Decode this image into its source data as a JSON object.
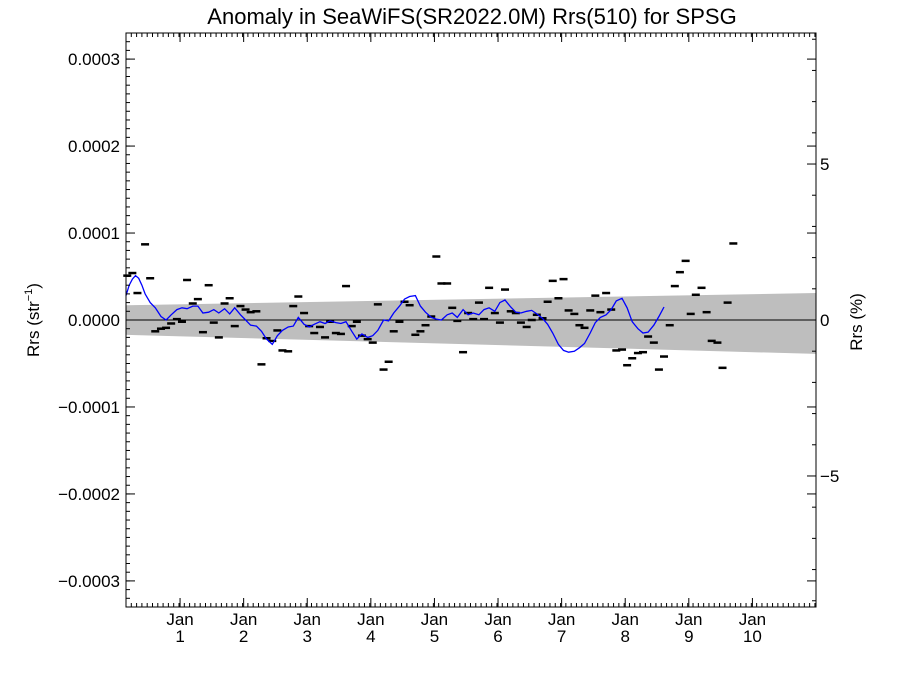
{
  "chart_data": {
    "type": "line",
    "title": "Anomaly in SeaWiFS(SR2022.0M) Rrs(510) for SPSG",
    "ylabel_main": "Rrs (str",
    "ylabel_sup": "−1",
    "ylabel_close": ")",
    "y2label": "Rrs (%)",
    "ylim": [
      -0.00033,
      0.00033
    ],
    "y2lim": [
      -9.2,
      9.2
    ],
    "xlim": [
      0,
      10.85
    ],
    "y_ticks": [
      {
        "value": 0.0003,
        "label": "0.0003"
      },
      {
        "value": 0.0002,
        "label": "0.0002"
      },
      {
        "value": 0.0001,
        "label": "0.0001"
      },
      {
        "value": 0.0,
        "label": "0.0000"
      },
      {
        "value": -0.0001,
        "label": "−0.0001"
      },
      {
        "value": -0.0002,
        "label": "−0.0002"
      },
      {
        "value": -0.0003,
        "label": "−0.0003"
      }
    ],
    "y2_ticks": [
      {
        "value": 5,
        "label": "5"
      },
      {
        "value": 0,
        "label": "0"
      },
      {
        "value": -5,
        "label": "−5"
      }
    ],
    "x_ticks": [
      {
        "value": 0.85,
        "month": "Jan",
        "year": "1"
      },
      {
        "value": 1.85,
        "month": "Jan",
        "year": "2"
      },
      {
        "value": 2.85,
        "month": "Jan",
        "year": "3"
      },
      {
        "value": 3.85,
        "month": "Jan",
        "year": "4"
      },
      {
        "value": 4.85,
        "month": "Jan",
        "year": "5"
      },
      {
        "value": 5.85,
        "month": "Jan",
        "year": "6"
      },
      {
        "value": 6.85,
        "month": "Jan",
        "year": "7"
      },
      {
        "value": 7.85,
        "month": "Jan",
        "year": "8"
      },
      {
        "value": 8.85,
        "month": "Jan",
        "year": "9"
      },
      {
        "value": 9.85,
        "month": "Jan",
        "year": "10"
      }
    ],
    "band": {
      "color": "#bebebe",
      "upper": [
        [
          0,
          1.7e-05
        ],
        [
          10.85,
          3.1e-05
        ]
      ],
      "lower": [
        [
          0,
          -1.7e-05
        ],
        [
          10.85,
          -3.9e-05
        ]
      ]
    },
    "zero_line": 0,
    "series": [
      {
        "kind": "monthly_points",
        "color": "#000000",
        "points": [
          [
            0.02,
            5.1e-05
          ],
          [
            0.1,
            5.4e-05
          ],
          [
            0.18,
            3.1e-05
          ],
          [
            0.3,
            8.7e-05
          ],
          [
            0.38,
            4.8e-05
          ],
          [
            0.46,
            -1.3e-05
          ],
          [
            0.55,
            -1e-05
          ],
          [
            0.63,
            -9e-06
          ],
          [
            0.71,
            -4e-06
          ],
          [
            0.8,
            1e-06
          ],
          [
            0.88,
            -2e-06
          ],
          [
            0.96,
            4.6e-05
          ],
          [
            1.05,
            1.9e-05
          ],
          [
            1.13,
            2.4e-05
          ],
          [
            1.21,
            -1.4e-05
          ],
          [
            1.3,
            4e-05
          ],
          [
            1.38,
            -3e-06
          ],
          [
            1.46,
            -2e-05
          ],
          [
            1.55,
            1.9e-05
          ],
          [
            1.63,
            2.5e-05
          ],
          [
            1.71,
            -7e-06
          ],
          [
            1.8,
            1.6e-05
          ],
          [
            1.88,
            1.2e-05
          ],
          [
            1.96,
            9e-06
          ],
          [
            2.05,
            1e-05
          ],
          [
            2.13,
            -5.1e-05
          ],
          [
            2.21,
            -2.1e-05
          ],
          [
            2.3,
            -2.4e-05
          ],
          [
            2.38,
            -1.2e-05
          ],
          [
            2.46,
            -3.5e-05
          ],
          [
            2.55,
            -3.6e-05
          ],
          [
            2.63,
            1.6e-05
          ],
          [
            2.71,
            2.7e-05
          ],
          [
            2.8,
            8e-06
          ],
          [
            2.88,
            -7e-06
          ],
          [
            2.96,
            -1.5e-05
          ],
          [
            3.05,
            -8e-06
          ],
          [
            3.13,
            -2e-05
          ],
          [
            3.21,
            -2e-06
          ],
          [
            3.3,
            -1.5e-05
          ],
          [
            3.38,
            -1.6e-05
          ],
          [
            3.46,
            3.9e-05
          ],
          [
            3.55,
            -7e-06
          ],
          [
            3.63,
            -2e-06
          ],
          [
            3.71,
            -1.8e-05
          ],
          [
            3.8,
            -2.2e-05
          ],
          [
            3.88,
            -2.6e-05
          ],
          [
            3.96,
            1.8e-05
          ],
          [
            4.05,
            -5.7e-05
          ],
          [
            4.13,
            -4.8e-05
          ],
          [
            4.21,
            -1.3e-05
          ],
          [
            4.3,
            -2e-06
          ],
          [
            4.38,
            2.1e-05
          ],
          [
            4.46,
            1.7e-05
          ],
          [
            4.55,
            -1.7e-05
          ],
          [
            4.63,
            -1.3e-05
          ],
          [
            4.71,
            -6e-06
          ],
          [
            4.8,
            4e-06
          ],
          [
            4.88,
            7.3e-05
          ],
          [
            4.96,
            4.2e-05
          ],
          [
            5.05,
            4.2e-05
          ],
          [
            5.13,
            1.4e-05
          ],
          [
            5.21,
            -1e-06
          ],
          [
            5.3,
            -3.7e-05
          ],
          [
            5.38,
            8e-06
          ],
          [
            5.46,
            1e-06
          ],
          [
            5.55,
            2e-05
          ],
          [
            5.63,
            1e-06
          ],
          [
            5.71,
            3.7e-05
          ],
          [
            5.8,
            8e-06
          ],
          [
            5.88,
            -3e-06
          ],
          [
            5.96,
            3.5e-05
          ],
          [
            6.05,
            1e-05
          ],
          [
            6.13,
            8e-06
          ],
          [
            6.21,
            -3e-06
          ],
          [
            6.3,
            -8e-06
          ],
          [
            6.38,
            0.0
          ],
          [
            6.46,
            6e-06
          ],
          [
            6.55,
            2e-06
          ],
          [
            6.63,
            2.1e-05
          ],
          [
            6.71,
            4.5e-05
          ],
          [
            6.8,
            2.5e-05
          ],
          [
            6.88,
            4.7e-05
          ],
          [
            6.96,
            1.1e-05
          ],
          [
            7.05,
            7e-06
          ],
          [
            7.13,
            -6e-06
          ],
          [
            7.21,
            -9e-06
          ],
          [
            7.3,
            1.1e-05
          ],
          [
            7.38,
            2.8e-05
          ],
          [
            7.46,
            9e-06
          ],
          [
            7.55,
            3.1e-05
          ],
          [
            7.63,
            1.2e-05
          ],
          [
            7.71,
            -3.5e-05
          ],
          [
            7.8,
            -3.4e-05
          ],
          [
            7.88,
            -5.2e-05
          ],
          [
            7.96,
            -4.4e-05
          ],
          [
            8.05,
            -3.8e-05
          ],
          [
            8.13,
            -3.7e-05
          ],
          [
            8.21,
            -1.9e-05
          ],
          [
            8.3,
            -2.6e-05
          ],
          [
            8.38,
            -5.7e-05
          ],
          [
            8.46,
            -4.2e-05
          ],
          [
            8.55,
            -6e-06
          ],
          [
            8.63,
            3.9e-05
          ],
          [
            8.71,
            5.5e-05
          ],
          [
            8.8,
            6.8e-05
          ],
          [
            8.88,
            7e-06
          ],
          [
            8.96,
            2.9e-05
          ],
          [
            9.05,
            3.7e-05
          ],
          [
            9.13,
            9e-06
          ],
          [
            9.21,
            -2.4e-05
          ],
          [
            9.3,
            -2.6e-05
          ],
          [
            9.38,
            -5.5e-05
          ],
          [
            9.46,
            2e-05
          ],
          [
            9.55,
            8.8e-05
          ]
        ]
      },
      {
        "kind": "running_mean",
        "color": "#0000ff",
        "points": [
          [
            0.0,
            2.8e-05
          ],
          [
            0.05,
            4e-05
          ],
          [
            0.1,
            4.7e-05
          ],
          [
            0.15,
            5.1e-05
          ],
          [
            0.2,
            4.8e-05
          ],
          [
            0.25,
            4e-05
          ],
          [
            0.3,
            3e-05
          ],
          [
            0.38,
            2e-05
          ],
          [
            0.46,
            1.4e-05
          ],
          [
            0.55,
            4e-06
          ],
          [
            0.63,
            0.0
          ],
          [
            0.71,
            6e-06
          ],
          [
            0.8,
            1.2e-05
          ],
          [
            0.88,
            1.4e-05
          ],
          [
            0.96,
            1.3e-05
          ],
          [
            1.05,
            1.6e-05
          ],
          [
            1.13,
            1.6e-05
          ],
          [
            1.21,
            8e-06
          ],
          [
            1.3,
            9e-06
          ],
          [
            1.38,
            1.2e-05
          ],
          [
            1.46,
            8e-06
          ],
          [
            1.55,
            1.3e-05
          ],
          [
            1.63,
            7e-06
          ],
          [
            1.71,
            1.4e-05
          ],
          [
            1.8,
            6e-06
          ],
          [
            1.88,
            0.0
          ],
          [
            1.96,
            -6e-06
          ],
          [
            2.05,
            -7e-06
          ],
          [
            2.13,
            -1.3e-05
          ],
          [
            2.21,
            -2.2e-05
          ],
          [
            2.3,
            -2.8e-05
          ],
          [
            2.38,
            -1.8e-05
          ],
          [
            2.46,
            -1.2e-05
          ],
          [
            2.55,
            -8e-06
          ],
          [
            2.63,
            -7e-06
          ],
          [
            2.71,
            3e-06
          ],
          [
            2.8,
            -5e-06
          ],
          [
            2.88,
            -8e-06
          ],
          [
            2.96,
            -5e-06
          ],
          [
            3.05,
            -2e-06
          ],
          [
            3.13,
            -4e-06
          ],
          [
            3.21,
            -1e-06
          ],
          [
            3.3,
            -3e-06
          ],
          [
            3.38,
            -4e-06
          ],
          [
            3.46,
            -2e-06
          ],
          [
            3.55,
            -1.3e-05
          ],
          [
            3.63,
            -2.2e-05
          ],
          [
            3.71,
            -1.6e-05
          ],
          [
            3.8,
            -2e-05
          ],
          [
            3.88,
            -1.8e-05
          ],
          [
            3.96,
            -1.2e-05
          ],
          [
            4.05,
            0.0
          ],
          [
            4.13,
            -1e-06
          ],
          [
            4.21,
            8e-06
          ],
          [
            4.3,
            1.6e-05
          ],
          [
            4.38,
            2.4e-05
          ],
          [
            4.46,
            2.7e-05
          ],
          [
            4.55,
            2.8e-05
          ],
          [
            4.63,
            1.6e-05
          ],
          [
            4.71,
            9e-06
          ],
          [
            4.8,
            3e-06
          ],
          [
            4.88,
            1e-06
          ],
          [
            4.96,
            0.0
          ],
          [
            5.05,
            6e-06
          ],
          [
            5.13,
            8e-06
          ],
          [
            5.21,
            3e-06
          ],
          [
            5.3,
            1.2e-05
          ],
          [
            5.38,
            6e-06
          ],
          [
            5.46,
            8e-06
          ],
          [
            5.55,
            6e-06
          ],
          [
            5.63,
            1.2e-05
          ],
          [
            5.71,
            1.4e-05
          ],
          [
            5.8,
            1e-05
          ],
          [
            5.88,
            2e-05
          ],
          [
            5.96,
            2.3e-05
          ],
          [
            6.05,
            1.5e-05
          ],
          [
            6.13,
            9e-06
          ],
          [
            6.21,
            8e-06
          ],
          [
            6.3,
            1e-05
          ],
          [
            6.38,
            1.1e-05
          ],
          [
            6.46,
            7e-06
          ],
          [
            6.55,
            2e-06
          ],
          [
            6.63,
            -5e-06
          ],
          [
            6.71,
            -1.5e-05
          ],
          [
            6.8,
            -2.8e-05
          ],
          [
            6.88,
            -3.5e-05
          ],
          [
            6.96,
            -3.7e-05
          ],
          [
            7.05,
            -3.6e-05
          ],
          [
            7.13,
            -3.2e-05
          ],
          [
            7.21,
            -2.7e-05
          ],
          [
            7.3,
            -1.5e-05
          ],
          [
            7.38,
            -3e-06
          ],
          [
            7.46,
            3e-06
          ],
          [
            7.55,
            6e-06
          ],
          [
            7.63,
            1.2e-05
          ],
          [
            7.71,
            2.2e-05
          ],
          [
            7.8,
            2.5e-05
          ],
          [
            7.88,
            1.4e-05
          ],
          [
            7.96,
            -2e-06
          ],
          [
            8.05,
            -1e-05
          ],
          [
            8.13,
            -1.5e-05
          ],
          [
            8.21,
            -1.4e-05
          ],
          [
            8.3,
            -6e-06
          ],
          [
            8.38,
            4e-06
          ],
          [
            8.46,
            1.5e-05
          ]
        ]
      }
    ],
    "grid": false,
    "legend": "none"
  }
}
